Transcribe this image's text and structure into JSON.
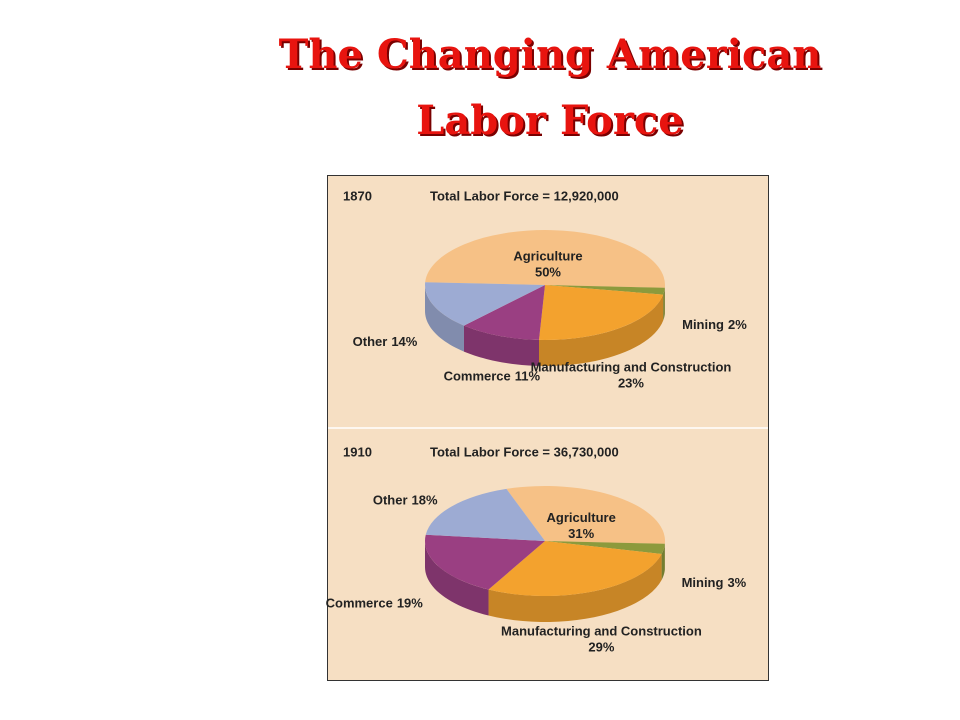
{
  "title": "The Changing American Labor Force",
  "chart_data": [
    {
      "type": "pie",
      "title": "1870",
      "subtitle": "Total Labor Force = 12,920,000",
      "categories": [
        "Agriculture",
        "Mining",
        "Manufacturing and Construction",
        "Commerce",
        "Other"
      ],
      "values": [
        50,
        2,
        23,
        11,
        14
      ],
      "value_labels": [
        "50%",
        "2%",
        "23%",
        "11%",
        "14%"
      ],
      "colors": [
        "#f6c186",
        "#8c9a3c",
        "#f3a22e",
        "#9a3f82",
        "#9dabd3"
      ]
    },
    {
      "type": "pie",
      "title": "1910",
      "subtitle": "Total Labor Force = 36,730,000",
      "categories": [
        "Agriculture",
        "Mining",
        "Manufacturing and Construction",
        "Commerce",
        "Other"
      ],
      "values": [
        31,
        3,
        29,
        19,
        18
      ],
      "value_labels": [
        "31%",
        "3%",
        "29%",
        "19%",
        "18%"
      ],
      "colors": [
        "#f6c186",
        "#8c9a3c",
        "#f3a22e",
        "#9a3f82",
        "#9dabd3"
      ]
    }
  ]
}
